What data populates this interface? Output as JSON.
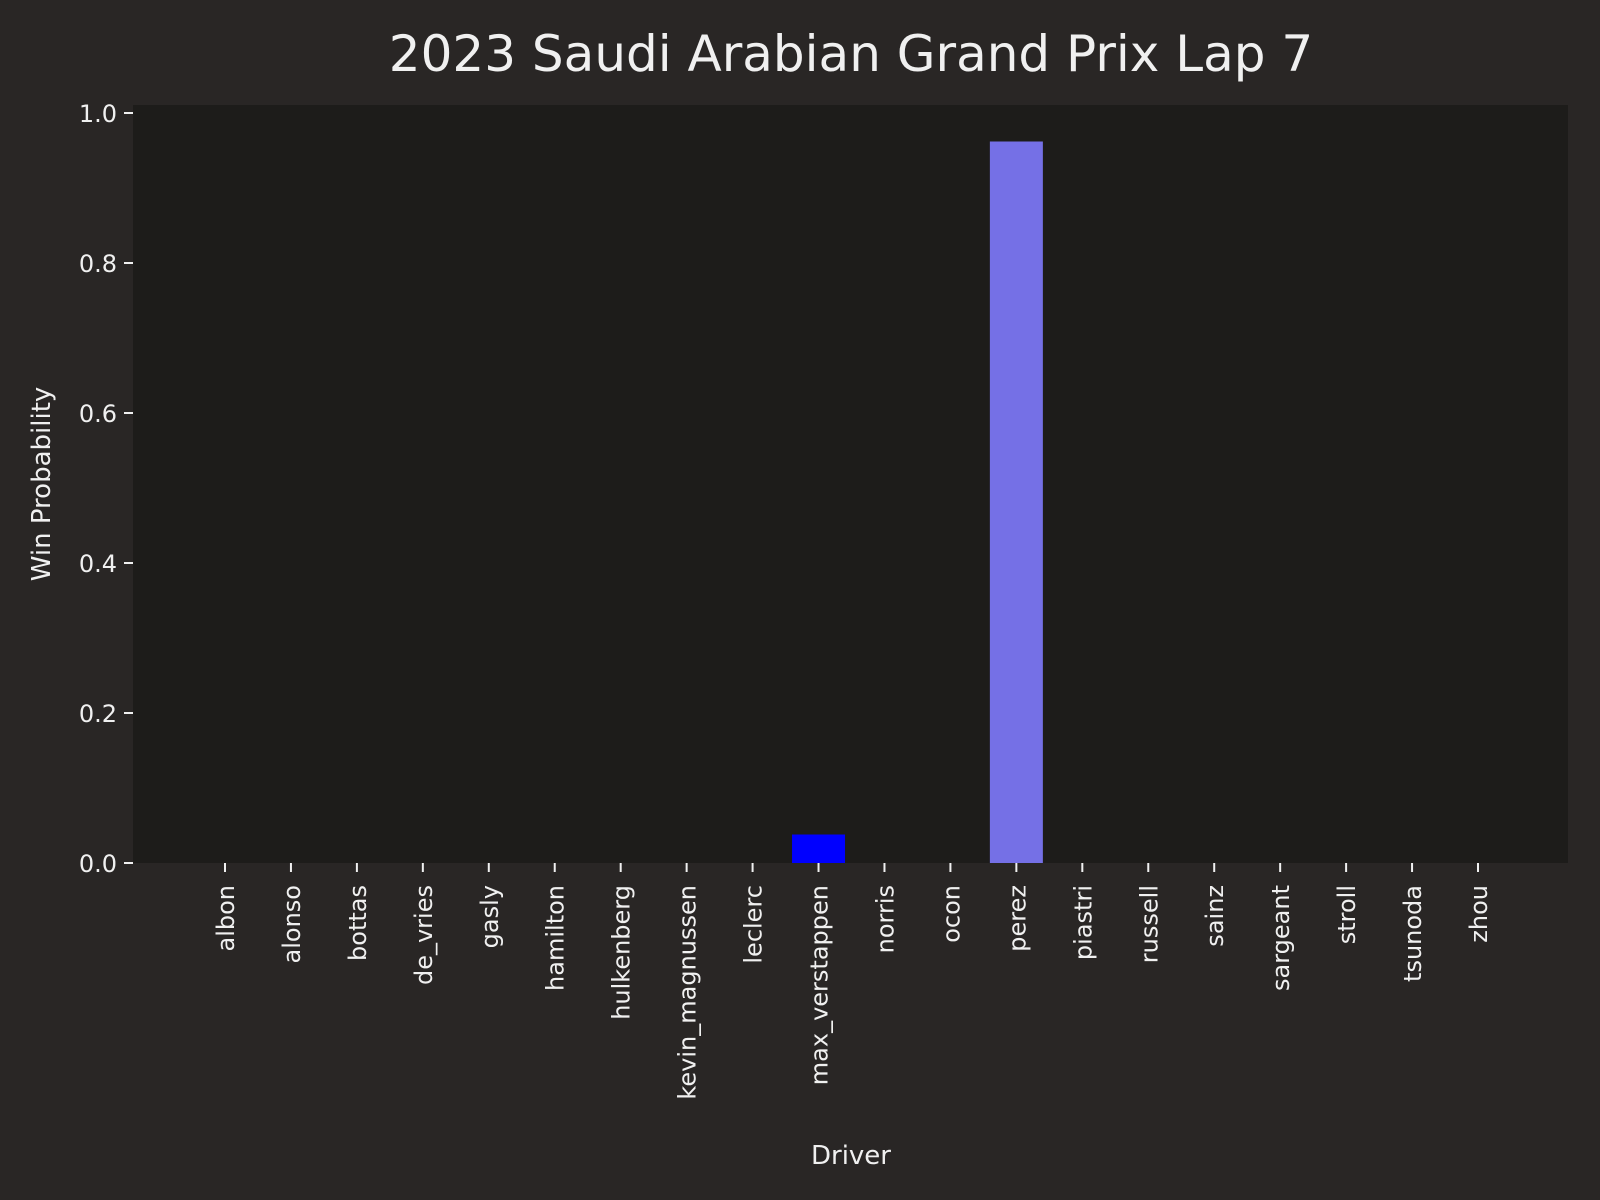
{
  "chart_data": {
    "type": "bar",
    "title": "2023 Saudi Arabian Grand Prix Lap 7",
    "xlabel": "Driver",
    "ylabel": "Win Probability",
    "ylim": [
      0,
      1.0
    ],
    "yticks": [
      "0.0",
      "0.2",
      "0.4",
      "0.6",
      "0.8",
      "1.0"
    ],
    "ytick_values": [
      0,
      0.2,
      0.4,
      0.6,
      0.8,
      1.0
    ],
    "grid": false,
    "categories": [
      "albon",
      "alonso",
      "bottas",
      "de_vries",
      "gasly",
      "hamilton",
      "hulkenberg",
      "kevin_magnussen",
      "leclerc",
      "max_verstappen",
      "norris",
      "ocon",
      "perez",
      "piastri",
      "russell",
      "sainz",
      "sargeant",
      "stroll",
      "tsunoda",
      "zhou"
    ],
    "values": [
      0,
      0,
      0,
      0,
      0,
      0,
      0,
      0,
      0,
      0.038,
      0,
      0,
      0.962,
      0,
      0,
      0,
      0,
      0,
      0,
      0
    ],
    "bar_colors": [
      "#0000ff",
      "#0000ff",
      "#0000ff",
      "#0000ff",
      "#0000ff",
      "#0000ff",
      "#0000ff",
      "#0000ff",
      "#0000ff",
      "#0000ff",
      "#0000ff",
      "#0000ff",
      "#7570e6",
      "#0000ff",
      "#0000ff",
      "#0000ff",
      "#0000ff",
      "#0000ff",
      "#0000ff",
      "#0000ff"
    ],
    "colors": {
      "figure_background": "#292625",
      "plot_background": "#1d1c1a",
      "text": "#f0f0f0"
    }
  }
}
